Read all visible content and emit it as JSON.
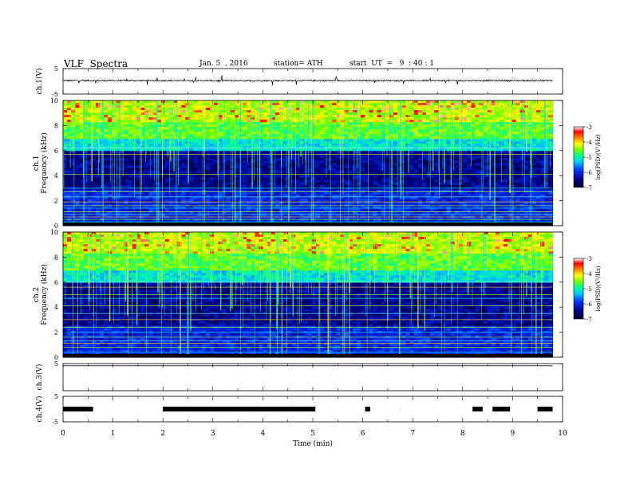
{
  "header": {
    "title": "VLF  Spectra",
    "date": "Jan. 5  , 2016",
    "station": "station= ATH",
    "start": "start  UT  =   9  : 40 : 1"
  },
  "chart_data": {
    "type": "heatmap",
    "x_axis": {
      "label": "Time  (min)",
      "range": [
        0,
        10
      ],
      "ticks": [
        "0",
        "1",
        "2",
        "3",
        "4",
        "5",
        "6",
        "7",
        "8",
        "9",
        "10"
      ],
      "data_end": 9.8
    },
    "panels": [
      {
        "id": "ch1-waveform",
        "kind": "waveform",
        "ylabel": "ch.1(V)",
        "ylim": [
          -5,
          5
        ],
        "ticks": [
          "5",
          "-5"
        ],
        "baseline": 0.3,
        "noise": 0.6
      },
      {
        "id": "ch1-spectrogram",
        "kind": "spectrogram",
        "ylabel": "ch.1",
        "ylabel2": "Frequency  (kHz)",
        "ylim": [
          0,
          10
        ],
        "ticks": [
          "0",
          "2",
          "4",
          "6",
          "8",
          "10"
        ],
        "colorbar": {
          "label": "log(PSD)(V²/Hz)",
          "range": [
            -7,
            -3
          ],
          "ticks": [
            "-3",
            "-4",
            "-5",
            "-6",
            "-7"
          ]
        },
        "quiet_band_khz": [
          2.8,
          6.0
        ],
        "horizontal_lines_khz": [
          0.3,
          0.5,
          0.7,
          0.9,
          1.1,
          1.4,
          1.6,
          1.9,
          2.3,
          2.7,
          3.0,
          4.1,
          5.7,
          6.2
        ]
      },
      {
        "id": "ch2-spectrogram",
        "kind": "spectrogram",
        "ylabel": "ch.2",
        "ylabel2": "Frequency  (kHz)",
        "ylim": [
          0,
          10
        ],
        "ticks": [
          "0",
          "2",
          "4",
          "6",
          "8",
          "10"
        ],
        "colorbar": {
          "label": "log(PSD)(V²/Hz)",
          "range": [
            -7,
            -3
          ],
          "ticks": [
            "-3",
            "-4",
            "-5",
            "-6",
            "-7"
          ]
        },
        "quiet_band_khz": [
          2.5,
          6.0
        ],
        "horizontal_lines_khz": [
          0.4,
          0.8,
          1.1,
          1.3,
          1.6,
          2.0,
          2.4,
          3.0,
          3.5,
          4.1,
          4.7,
          5.0,
          5.6,
          6.0
        ]
      },
      {
        "id": "ch3-waveform",
        "kind": "flatline",
        "ylabel": "ch.3(V)",
        "ylim": [
          -5,
          5
        ],
        "ticks": [
          "5"
        ],
        "level": 4.2
      },
      {
        "id": "ch4-waveform",
        "kind": "dropout",
        "ylabel": "ch.4(V)",
        "ylim": [
          -5,
          5
        ],
        "ticks": [
          "5",
          "-5"
        ],
        "level": 0.0,
        "gaps_min": [
          0.6,
          1.95,
          5.05,
          6.0,
          6.15,
          6.7,
          6.75,
          8.15,
          8.4,
          8.55,
          8.95,
          9.45
        ]
      }
    ]
  }
}
